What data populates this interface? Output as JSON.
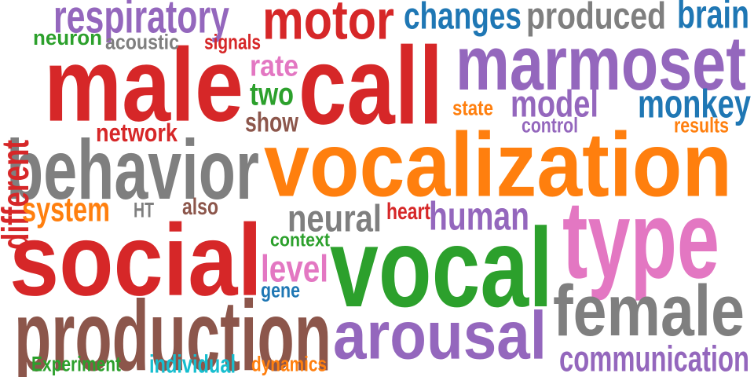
{
  "colors": {
    "red": "#d62728",
    "orange": "#ff7f0e",
    "green": "#2ca02c",
    "blue": "#1f77b4",
    "purple": "#9467bd",
    "brown": "#8c564b",
    "pink": "#e377c2",
    "gray": "#7f7f7f",
    "cyan": "#17becf"
  },
  "words": [
    {
      "text": "vocalization",
      "color": "orange"
    },
    {
      "text": "vocal",
      "color": "green"
    },
    {
      "text": "type",
      "color": "pink"
    },
    {
      "text": "social",
      "color": "red"
    },
    {
      "text": "male",
      "color": "red"
    },
    {
      "text": "call",
      "color": "red"
    },
    {
      "text": "behavior",
      "color": "gray"
    },
    {
      "text": "production",
      "color": "brown"
    },
    {
      "text": "marmoset",
      "color": "purple"
    },
    {
      "text": "female",
      "color": "gray"
    },
    {
      "text": "arousal",
      "color": "purple"
    },
    {
      "text": "motor",
      "color": "red"
    },
    {
      "text": "respiratory",
      "color": "purple"
    },
    {
      "text": "changes",
      "color": "blue"
    },
    {
      "text": "produced",
      "color": "gray"
    },
    {
      "text": "brain",
      "color": "blue"
    },
    {
      "text": "monkey",
      "color": "blue"
    },
    {
      "text": "model",
      "color": "purple"
    },
    {
      "text": "human",
      "color": "purple"
    },
    {
      "text": "neural",
      "color": "gray"
    },
    {
      "text": "communication",
      "color": "purple"
    },
    {
      "text": "different",
      "color": "red"
    },
    {
      "text": "system",
      "color": "orange"
    },
    {
      "text": "level",
      "color": "pink"
    },
    {
      "text": "rate",
      "color": "pink"
    },
    {
      "text": "two",
      "color": "green"
    },
    {
      "text": "show",
      "color": "brown"
    },
    {
      "text": "network",
      "color": "red"
    },
    {
      "text": "neuron",
      "color": "green"
    },
    {
      "text": "acoustic",
      "color": "gray"
    },
    {
      "text": "signals",
      "color": "red"
    },
    {
      "text": "state",
      "color": "orange"
    },
    {
      "text": "control",
      "color": "purple"
    },
    {
      "text": "results",
      "color": "orange"
    },
    {
      "text": "heart",
      "color": "red"
    },
    {
      "text": "HT",
      "color": "gray"
    },
    {
      "text": "also",
      "color": "brown"
    },
    {
      "text": "context",
      "color": "green"
    },
    {
      "text": "gene",
      "color": "blue"
    },
    {
      "text": "Experiment",
      "color": "green"
    },
    {
      "text": "individual",
      "color": "cyan"
    },
    {
      "text": "dynamics",
      "color": "orange"
    }
  ]
}
